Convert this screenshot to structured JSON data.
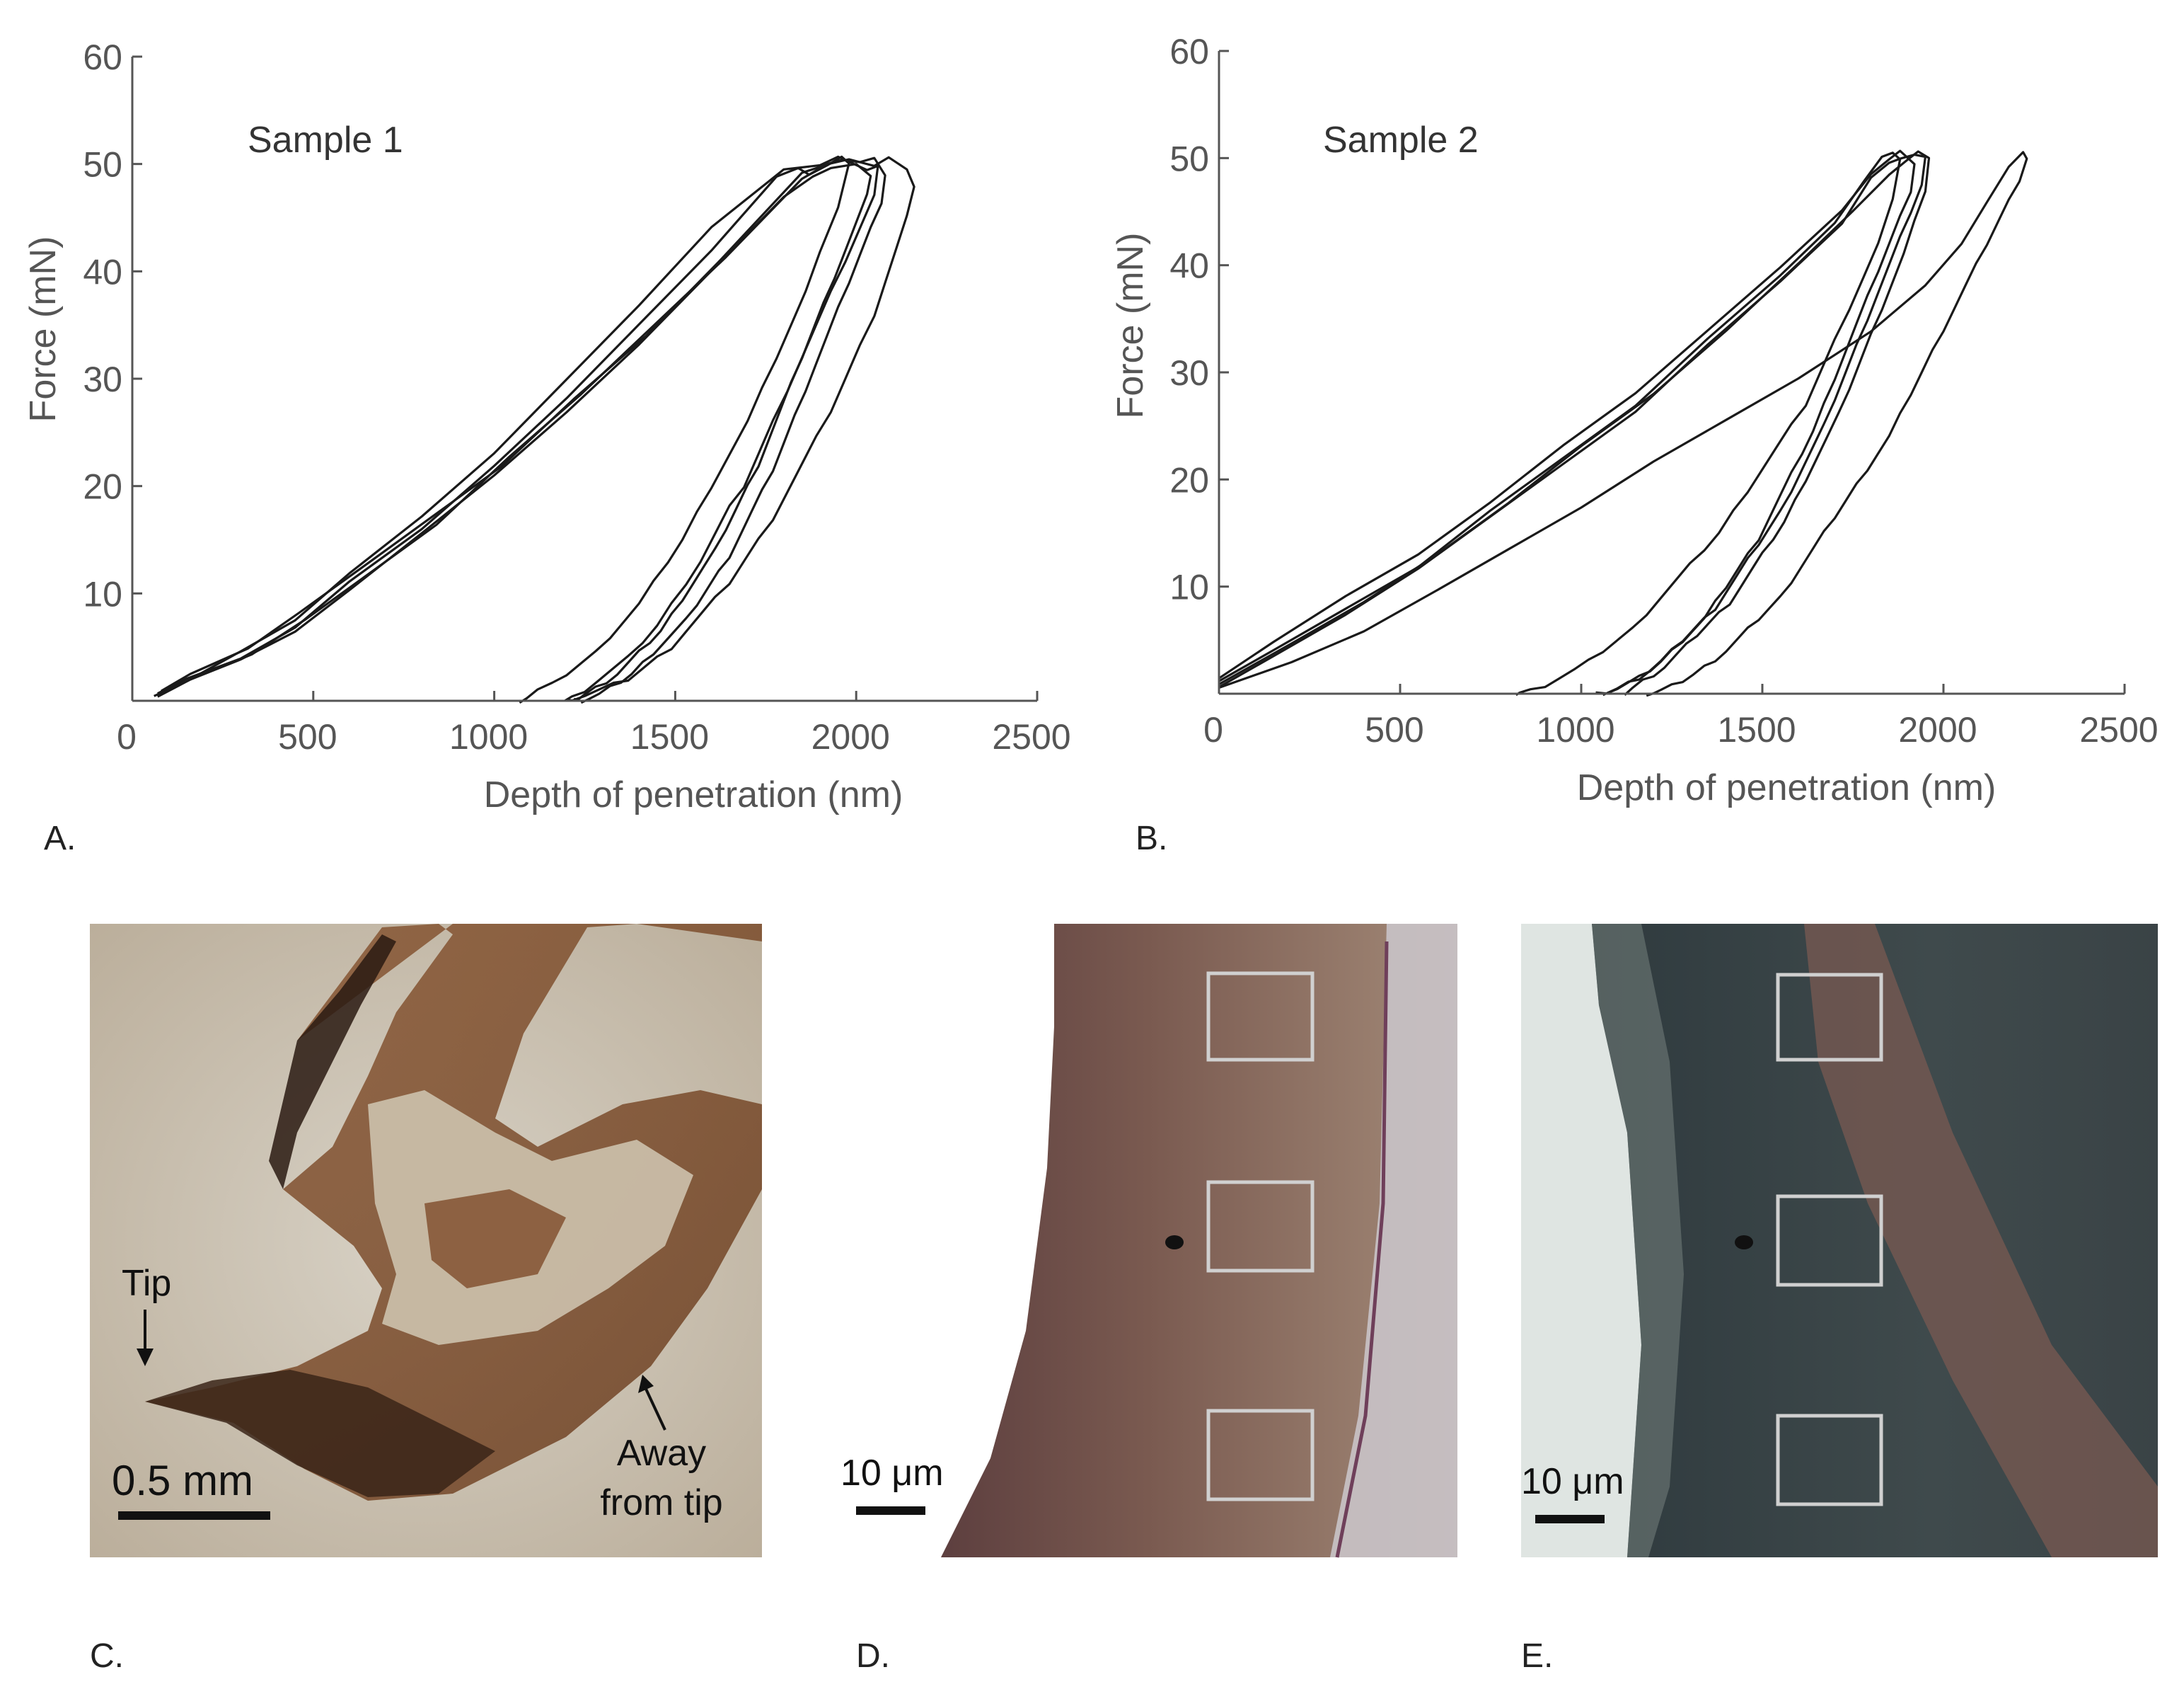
{
  "chart_data": [
    {
      "type": "line",
      "panel": "A.",
      "title": "Sample 1",
      "xlabel": "Depth of penetration (nm)",
      "ylabel": "Force (mN)",
      "xlim": [
        0,
        2500
      ],
      "ylim": [
        0,
        60
      ],
      "xticks": [
        "0",
        "500",
        "1000",
        "1500",
        "2000",
        "2500"
      ],
      "yticks": [
        "10",
        "20",
        "30",
        "40",
        "50",
        "60"
      ],
      "grid": false,
      "series": [
        {
          "x": [
            70,
            150,
            300,
            450,
            600,
            800,
            1000,
            1200,
            1400,
            1600,
            1780,
            1840,
            1870,
            1920,
            1960,
            1980,
            1950,
            1900,
            1860,
            1820,
            1780,
            1740,
            1700,
            1650,
            1600,
            1560,
            1520,
            1480,
            1440,
            1400,
            1360,
            1320,
            1280,
            1240,
            1200,
            1160,
            1120,
            1090,
            1070
          ],
          "y": [
            0.5,
            2,
            4,
            7,
            11,
            16,
            22,
            28,
            35,
            42,
            49,
            49.5,
            49,
            50,
            50.5,
            50,
            46,
            42,
            38,
            35,
            32,
            29,
            26,
            23,
            20,
            17.5,
            15,
            13,
            11,
            9,
            7.5,
            6,
            4.5,
            3.5,
            2.5,
            1.5,
            1,
            0.3,
            0
          ]
        },
        {
          "x": [
            60,
            150,
            300,
            450,
            600,
            800,
            1000,
            1200,
            1400,
            1600,
            1800,
            1900,
            1950,
            1990,
            2030,
            2060,
            2050,
            2010,
            1970,
            1930,
            1890,
            1850,
            1810,
            1770,
            1730,
            1690,
            1650,
            1610,
            1570,
            1530,
            1490,
            1450,
            1410,
            1370,
            1330,
            1290,
            1250,
            1215,
            1195
          ],
          "y": [
            0.5,
            2,
            4.5,
            7.5,
            12,
            17,
            23,
            30,
            37,
            44,
            49.5,
            50,
            50.5,
            50,
            49.5,
            50,
            47,
            44,
            41,
            38,
            35,
            32,
            29,
            26,
            23,
            20,
            18,
            15.5,
            13,
            11,
            9,
            7,
            5.5,
            4,
            3,
            2,
            1,
            0.3,
            0
          ]
        },
        {
          "x": [
            80,
            160,
            320,
            460,
            620,
            820,
            1020,
            1220,
            1420,
            1620,
            1850,
            1930,
            1980,
            2050,
            2090,
            2140,
            2160,
            2140,
            2110,
            2080,
            2050,
            2010,
            1970,
            1930,
            1890,
            1850,
            1810,
            1770,
            1730,
            1690,
            1650,
            1610,
            1570,
            1530,
            1490,
            1450,
            1410,
            1370,
            1330,
            1290,
            1250,
            1215,
            1200
          ],
          "y": [
            0.8,
            2.5,
            5,
            8,
            12,
            17,
            22,
            28,
            34,
            41,
            49,
            50,
            50.5,
            50,
            50.5,
            49.5,
            48,
            45,
            42,
            39,
            36,
            33,
            30,
            27,
            24.5,
            22,
            19.5,
            17,
            15,
            13,
            11,
            9.5,
            8,
            6.5,
            5,
            4,
            3,
            2,
            1.5,
            1,
            0.5,
            0.2,
            0
          ]
        },
        {
          "x": [
            70,
            160,
            300,
            450,
            600,
            800,
            1000,
            1200,
            1400,
            1600,
            1800,
            1880,
            1930,
            2000,
            2040,
            2030,
            2000,
            1970,
            1940,
            1910,
            1880,
            1850,
            1820,
            1790,
            1760,
            1730,
            1700,
            1670,
            1640,
            1610,
            1580,
            1550,
            1520,
            1490,
            1460,
            1430,
            1400,
            1370,
            1340,
            1310,
            1280,
            1250,
            1230,
            1220
          ],
          "y": [
            0.5,
            1.8,
            3.8,
            6.5,
            10.5,
            15.5,
            21,
            27,
            33,
            40,
            47,
            49,
            49.5,
            50,
            49,
            47,
            44.5,
            42,
            39.5,
            37,
            34.5,
            32,
            29.5,
            27,
            24.5,
            22,
            20,
            18,
            16,
            14,
            12.5,
            11,
            9.5,
            8,
            6.5,
            5.5,
            4.5,
            3.5,
            2.5,
            1.8,
            1.2,
            0.6,
            0.2,
            0
          ]
        },
        {
          "x": [
            90,
            170,
            330,
            480,
            640,
            840,
            1040,
            1240,
            1440,
            1640,
            1850,
            1920,
            1960,
            2010,
            2050,
            2080,
            2070,
            2040,
            2010,
            1980,
            1950,
            1920,
            1890,
            1860,
            1830,
            1800,
            1770,
            1740,
            1710,
            1680,
            1650,
            1620,
            1590,
            1560,
            1530,
            1500,
            1470,
            1440,
            1410,
            1380,
            1350,
            1320,
            1290,
            1260,
            1240
          ],
          "y": [
            0.8,
            2.2,
            4.5,
            7.5,
            11.5,
            16.5,
            22.5,
            28.5,
            35,
            41.5,
            48.5,
            50,
            50.5,
            50,
            50.5,
            49,
            46.5,
            44,
            41.5,
            39,
            36.5,
            34,
            31.5,
            29,
            26.5,
            24,
            21.5,
            19.5,
            17.5,
            15.5,
            13.5,
            12,
            10.5,
            9,
            7.5,
            6.5,
            5.5,
            4.5,
            3.5,
            2.5,
            1.8,
            1.2,
            0.6,
            0.2,
            0
          ]
        }
      ]
    },
    {
      "type": "line",
      "panel": "B.",
      "title": "Sample 2",
      "xlabel": "Depth of penetration (nm)",
      "ylabel": "Force (mN)",
      "xlim": [
        0,
        2500
      ],
      "ylim": [
        0,
        60
      ],
      "xticks": [
        "0",
        "500",
        "1000",
        "1500",
        "2000",
        "2500"
      ],
      "yticks": [
        "10",
        "20",
        "30",
        "40",
        "50",
        "60"
      ],
      "grid": false,
      "series": [
        {
          "x": [
            0,
            150,
            350,
            550,
            750,
            950,
            1150,
            1350,
            1550,
            1700,
            1780,
            1830,
            1860,
            1880,
            1860,
            1820,
            1780,
            1740,
            1700,
            1660,
            1620,
            1580,
            1540,
            1500,
            1460,
            1420,
            1380,
            1340,
            1300,
            1260,
            1220,
            1180,
            1140,
            1100,
            1060,
            1020,
            980,
            940,
            900,
            860,
            830,
            820
          ],
          "y": [
            1,
            4,
            8,
            12,
            17,
            22,
            27,
            33,
            39,
            44,
            48,
            50,
            50.5,
            50,
            46,
            42,
            39,
            36,
            33,
            30,
            27,
            25,
            23,
            21,
            19,
            17,
            15,
            13.5,
            12,
            10.5,
            9,
            7.5,
            6,
            5,
            4,
            3,
            2.2,
            1.5,
            0.8,
            0.3,
            0.1,
            0
          ]
        },
        {
          "x": [
            0,
            150,
            350,
            550,
            750,
            950,
            1150,
            1350,
            1550,
            1720,
            1800,
            1850,
            1880,
            1900,
            1920,
            1910,
            1880,
            1850,
            1820,
            1790,
            1760,
            1730,
            1700,
            1670,
            1640,
            1610,
            1580,
            1550,
            1520,
            1490,
            1460,
            1430,
            1400,
            1370,
            1340,
            1310,
            1280,
            1250,
            1220,
            1190,
            1160,
            1130,
            1100,
            1070,
            1040
          ],
          "y": [
            1.5,
            5,
            9,
            13,
            18,
            23,
            28,
            34,
            40,
            45,
            48.5,
            50,
            50.5,
            50,
            49.5,
            47,
            44.5,
            42,
            39.5,
            37,
            34.5,
            32,
            29.5,
            27,
            24.5,
            22.5,
            20.5,
            18.5,
            16.5,
            14.5,
            13,
            11.5,
            10,
            8.5,
            7,
            6,
            5,
            4,
            3,
            2.2,
            1.5,
            1,
            0.5,
            0.2,
            0
          ]
        },
        {
          "x": [
            0,
            150,
            350,
            550,
            750,
            950,
            1150,
            1350,
            1550,
            1720,
            1800,
            1850,
            1880,
            1920,
            1950,
            1940,
            1910,
            1880,
            1850,
            1820,
            1790,
            1760,
            1730,
            1700,
            1670,
            1640,
            1610,
            1580,
            1550,
            1520,
            1490,
            1460,
            1430,
            1400,
            1370,
            1340,
            1310,
            1280,
            1250,
            1220,
            1190,
            1160,
            1130,
            1100,
            1060
          ],
          "y": [
            0.5,
            3.5,
            7.5,
            11.5,
            16.5,
            21.5,
            26.5,
            32.5,
            38.5,
            44,
            48,
            49.5,
            50,
            50.5,
            50,
            47.5,
            45,
            42.5,
            40,
            37.5,
            35,
            32.5,
            30,
            27.5,
            25,
            23,
            21,
            19,
            17,
            15.5,
            14,
            12.5,
            11,
            9.5,
            8,
            7,
            6,
            5,
            4,
            3,
            2.2,
            1.5,
            1,
            0.5,
            0
          ]
        },
        {
          "x": [
            0,
            200,
            400,
            600,
            800,
            1000,
            1200,
            1400,
            1600,
            1750,
            1850,
            1900,
            1930,
            1960,
            1950,
            1920,
            1890,
            1860,
            1830,
            1800,
            1770,
            1740,
            1710,
            1680,
            1650,
            1620,
            1590,
            1560,
            1530,
            1500,
            1470,
            1440,
            1410,
            1380,
            1350,
            1320,
            1290,
            1260,
            1230,
            1200,
            1170,
            1140,
            1120
          ],
          "y": [
            1,
            4.5,
            8.5,
            13,
            18,
            23,
            28,
            34,
            40,
            45,
            48.5,
            50,
            50.5,
            50,
            47,
            44,
            41,
            38.5,
            36,
            33.5,
            31,
            28.5,
            26,
            24,
            22,
            20,
            18,
            16,
            14.5,
            13,
            11.5,
            10,
            8.5,
            7.5,
            6.5,
            5.5,
            4.5,
            3.5,
            2.5,
            1.8,
            1.2,
            0.5,
            0
          ]
        },
        {
          "x": [
            0,
            200,
            400,
            600,
            800,
            1000,
            1200,
            1400,
            1600,
            1800,
            1950,
            2050,
            2120,
            2180,
            2220,
            2230,
            2210,
            2180,
            2150,
            2120,
            2090,
            2060,
            2030,
            2000,
            1970,
            1940,
            1910,
            1880,
            1850,
            1820,
            1790,
            1760,
            1730,
            1700,
            1670,
            1640,
            1610,
            1580,
            1550,
            1520,
            1490,
            1460,
            1430,
            1400,
            1370,
            1340,
            1310,
            1280,
            1250,
            1220,
            1200,
            1180
          ],
          "y": [
            0.5,
            3,
            6,
            9.5,
            13.5,
            17.5,
            21.5,
            25.5,
            29.5,
            34,
            38,
            42,
            46,
            49,
            50.5,
            50,
            48,
            46,
            44,
            42,
            40,
            38,
            36,
            34,
            32,
            30,
            28,
            26,
            24,
            22.5,
            21,
            19.5,
            18,
            16.5,
            15,
            13.5,
            12,
            10.5,
            9,
            8,
            7,
            6,
            5,
            4,
            3.2,
            2.5,
            1.8,
            1.2,
            0.7,
            0.3,
            0.1,
            0
          ]
        }
      ]
    }
  ],
  "panel_labels": {
    "c": "C.",
    "d": "D.",
    "e": "E."
  },
  "images": {
    "c": {
      "tip_label": "Tip",
      "away_label_line1": "Away",
      "away_label_line2": "from tip",
      "scale_label": "0.5 mm"
    },
    "d": {
      "scale_label": "10 μm"
    },
    "e": {
      "scale_label": "10 μm"
    }
  },
  "colors": {
    "curve": "#1a1a1a",
    "axis": "#555555",
    "indent_box": "#cfcfcf"
  }
}
